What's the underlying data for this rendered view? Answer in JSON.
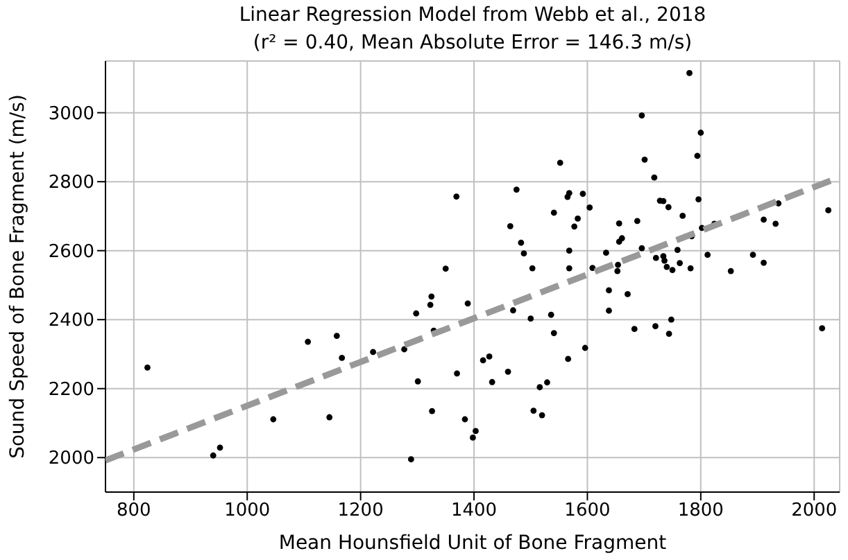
{
  "chart_data": {
    "type": "scatter",
    "title": "Linear Regression Model from Webb et al., 2018",
    "subtitle": "(r² = 0.40, Mean Absolute Error = 146.3 m/s)",
    "xlabel": "Mean Hounsfield Unit of Bone Fragment",
    "ylabel": "Sound Speed of Bone Fragment (m/s)",
    "xlim": [
      750,
      2045
    ],
    "ylim": [
      1900,
      3150
    ],
    "xticks": [
      800,
      1000,
      1200,
      1400,
      1600,
      1800,
      2000
    ],
    "yticks": [
      2000,
      2200,
      2400,
      2600,
      2800,
      3000
    ],
    "grid": true,
    "marker": "circle",
    "series": [
      {
        "color": "#000000",
        "x": [
          824,
          940,
          952,
          1046,
          1107,
          1145,
          1158,
          1167,
          1222,
          1277,
          1289,
          1298,
          1301,
          1325,
          1323,
          1326,
          1329,
          1350,
          1389,
          1370,
          1416,
          1427,
          1432,
          1460,
          1469,
          1500,
          1536,
          1541,
          1566,
          1596,
          1516,
          1529,
          1505,
          1520,
          1384,
          1398,
          1403,
          1638,
          1638,
          1671,
          1683,
          1720,
          1744,
          1748,
          2014,
          1780,
          1696,
          1800,
          1794,
          1701,
          1718,
          1552,
          1369,
          1475,
          1565,
          1568,
          1592,
          1604,
          1541,
          1583,
          1577,
          1464,
          1483,
          1488,
          1503,
          1568,
          1568,
          1609,
          1633,
          1656,
          1656,
          1661,
          1688,
          1696,
          1654,
          1653,
          1728,
          1734,
          1743,
          1768,
          1796,
          1721,
          1734,
          1736,
          1759,
          1740,
          1750,
          1763,
          1782,
          1784,
          1802,
          1824,
          1812,
          1853,
          1892,
          1911,
          1911,
          1932,
          1937,
          2025
        ],
        "values": [
          2261,
          2006,
          2029,
          2111,
          2336,
          2117,
          2353,
          2289,
          2306,
          2314,
          1995,
          2418,
          2221,
          2467,
          2443,
          2135,
          2368,
          2548,
          2447,
          2244,
          2282,
          2293,
          2219,
          2249,
          2427,
          2403,
          2414,
          2361,
          2286,
          2318,
          2204,
          2218,
          2136,
          2123,
          2111,
          2058,
          2077,
          2485,
          2426,
          2474,
          2373,
          2381,
          2359,
          2400,
          2375,
          3115,
          2992,
          2942,
          2875,
          2864,
          2812,
          2855,
          2757,
          2777,
          2756,
          2767,
          2765,
          2725,
          2710,
          2693,
          2670,
          2671,
          2623,
          2592,
          2549,
          2600,
          2549,
          2550,
          2594,
          2679,
          2626,
          2636,
          2686,
          2607,
          2559,
          2541,
          2745,
          2744,
          2726,
          2701,
          2749,
          2579,
          2584,
          2571,
          2602,
          2553,
          2544,
          2564,
          2549,
          2642,
          2666,
          2678,
          2588,
          2541,
          2588,
          2690,
          2565,
          2678,
          2737,
          2717
        ]
      },
      {
        "type": "line",
        "color": "#999999",
        "line_style": "dashed",
        "marker": "none",
        "x": [
          750,
          2045
        ],
        "values": [
          1992,
          2813
        ]
      }
    ]
  }
}
